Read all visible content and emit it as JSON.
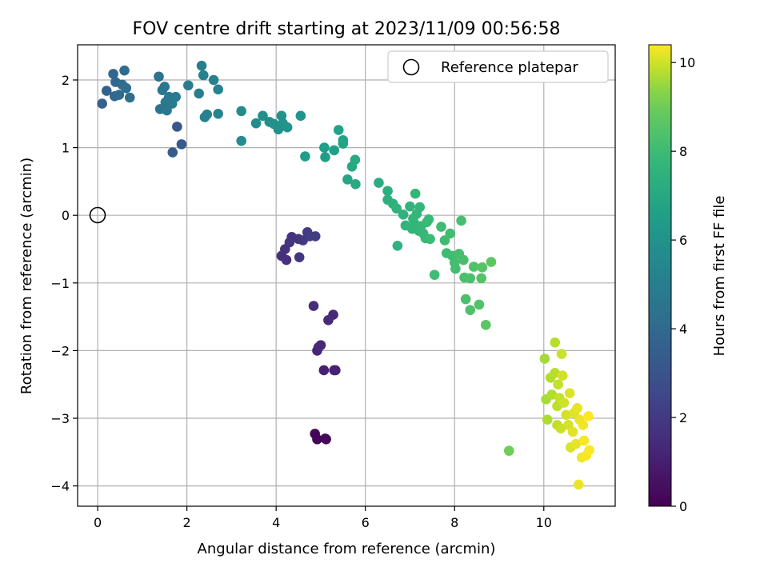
{
  "chart_data": {
    "type": "scatter",
    "title": "FOV centre drift starting at 2023/11/09 00:56:58",
    "xlabel": "Angular distance from reference (arcmin)",
    "ylabel": "Rotation from reference (arcmin)",
    "xlim": [
      -0.45,
      11.6
    ],
    "ylim": [
      -4.3,
      2.52
    ],
    "xticks": [
      0,
      2,
      4,
      6,
      8,
      10
    ],
    "yticks": [
      -4,
      -3,
      -2,
      -1,
      0,
      1,
      2
    ],
    "grid": true,
    "legend": {
      "position": "top-right",
      "entries": [
        "Reference platepar"
      ]
    },
    "reference_point": {
      "x": 0,
      "y": 0
    },
    "colorbar": {
      "label": "Hours from first FF file",
      "colormap": "viridis",
      "min": 0,
      "max": 10.4,
      "ticks": [
        0,
        2,
        4,
        6,
        8,
        10
      ]
    },
    "series": [
      {
        "points": [
          {
            "x": 4.87,
            "y": -3.23,
            "c": 0.1
          },
          {
            "x": 4.92,
            "y": -3.31,
            "c": 0.15
          },
          {
            "x": 5.1,
            "y": -3.3,
            "c": 0.2
          },
          {
            "x": 5.12,
            "y": -3.31,
            "c": 0.25
          },
          {
            "x": 5.3,
            "y": -2.29,
            "c": 1.0
          },
          {
            "x": 5.07,
            "y": -2.29,
            "c": 1.05
          },
          {
            "x": 5.33,
            "y": -2.29,
            "c": 1.1
          },
          {
            "x": 4.92,
            "y": -2.0,
            "c": 1.2
          },
          {
            "x": 4.95,
            "y": -1.95,
            "c": 1.25
          },
          {
            "x": 5.0,
            "y": -1.92,
            "c": 1.3
          },
          {
            "x": 5.28,
            "y": -1.47,
            "c": 1.35
          },
          {
            "x": 5.17,
            "y": -1.55,
            "c": 1.4
          },
          {
            "x": 4.84,
            "y": -1.34,
            "c": 1.45
          },
          {
            "x": 4.12,
            "y": -0.6,
            "c": 1.6
          },
          {
            "x": 4.23,
            "y": -0.66,
            "c": 1.65
          },
          {
            "x": 4.2,
            "y": -0.5,
            "c": 1.7
          },
          {
            "x": 4.3,
            "y": -0.4,
            "c": 1.75
          },
          {
            "x": 4.35,
            "y": -0.32,
            "c": 1.8
          },
          {
            "x": 4.5,
            "y": -0.35,
            "c": 1.85
          },
          {
            "x": 4.52,
            "y": -0.62,
            "c": 1.9
          },
          {
            "x": 4.6,
            "y": -0.37,
            "c": 1.95
          },
          {
            "x": 4.7,
            "y": -0.25,
            "c": 2.0
          },
          {
            "x": 4.75,
            "y": -0.31,
            "c": 2.05
          },
          {
            "x": 4.88,
            "y": -0.31,
            "c": 2.1
          },
          {
            "x": 1.78,
            "y": 1.31,
            "c": 3.1
          },
          {
            "x": 1.88,
            "y": 1.05,
            "c": 3.3
          },
          {
            "x": 1.68,
            "y": 0.93,
            "c": 3.4
          },
          {
            "x": 0.1,
            "y": 1.65,
            "c": 3.6
          },
          {
            "x": 0.2,
            "y": 1.84,
            "c": 3.7
          },
          {
            "x": 0.35,
            "y": 2.09,
            "c": 3.8
          },
          {
            "x": 0.4,
            "y": 1.97,
            "c": 3.9
          },
          {
            "x": 0.38,
            "y": 1.76,
            "c": 3.95
          },
          {
            "x": 0.48,
            "y": 1.78,
            "c": 4.0
          },
          {
            "x": 0.55,
            "y": 1.93,
            "c": 4.1
          },
          {
            "x": 0.6,
            "y": 2.14,
            "c": 4.15
          },
          {
            "x": 0.64,
            "y": 1.88,
            "c": 4.2
          },
          {
            "x": 0.72,
            "y": 1.74,
            "c": 4.25
          },
          {
            "x": 1.37,
            "y": 2.05,
            "c": 4.4
          },
          {
            "x": 1.4,
            "y": 1.57,
            "c": 4.5
          },
          {
            "x": 1.45,
            "y": 1.85,
            "c": 4.55
          },
          {
            "x": 1.5,
            "y": 1.9,
            "c": 4.6
          },
          {
            "x": 1.52,
            "y": 1.67,
            "c": 4.65
          },
          {
            "x": 1.55,
            "y": 1.55,
            "c": 4.7
          },
          {
            "x": 1.6,
            "y": 1.75,
            "c": 4.75
          },
          {
            "x": 1.67,
            "y": 1.65,
            "c": 4.8
          },
          {
            "x": 1.75,
            "y": 1.75,
            "c": 4.85
          },
          {
            "x": 2.03,
            "y": 1.92,
            "c": 4.9
          },
          {
            "x": 2.27,
            "y": 1.8,
            "c": 5.0
          },
          {
            "x": 2.33,
            "y": 2.21,
            "c": 5.05
          },
          {
            "x": 2.37,
            "y": 2.07,
            "c": 5.1
          },
          {
            "x": 2.4,
            "y": 1.45,
            "c": 5.15
          },
          {
            "x": 2.45,
            "y": 1.49,
            "c": 5.2
          },
          {
            "x": 2.6,
            "y": 2.0,
            "c": 5.25
          },
          {
            "x": 2.7,
            "y": 1.86,
            "c": 5.3
          },
          {
            "x": 2.7,
            "y": 1.5,
            "c": 5.35
          },
          {
            "x": 3.22,
            "y": 1.54,
            "c": 5.6
          },
          {
            "x": 3.22,
            "y": 1.1,
            "c": 5.65
          },
          {
            "x": 3.55,
            "y": 1.36,
            "c": 5.7
          },
          {
            "x": 3.7,
            "y": 1.47,
            "c": 5.75
          },
          {
            "x": 3.85,
            "y": 1.38,
            "c": 5.8
          },
          {
            "x": 3.95,
            "y": 1.35,
            "c": 5.85
          },
          {
            "x": 4.05,
            "y": 1.27,
            "c": 5.9
          },
          {
            "x": 4.12,
            "y": 1.47,
            "c": 5.95
          },
          {
            "x": 4.15,
            "y": 1.36,
            "c": 6.0
          },
          {
            "x": 4.25,
            "y": 1.3,
            "c": 6.05
          },
          {
            "x": 4.55,
            "y": 1.47,
            "c": 6.1
          },
          {
            "x": 4.65,
            "y": 0.87,
            "c": 6.4
          },
          {
            "x": 5.08,
            "y": 1.0,
            "c": 6.5
          },
          {
            "x": 5.1,
            "y": 0.86,
            "c": 6.55
          },
          {
            "x": 5.3,
            "y": 0.96,
            "c": 6.6
          },
          {
            "x": 5.4,
            "y": 1.26,
            "c": 6.7
          },
          {
            "x": 5.5,
            "y": 1.11,
            "c": 6.75
          },
          {
            "x": 5.5,
            "y": 1.06,
            "c": 6.8
          },
          {
            "x": 5.6,
            "y": 0.53,
            "c": 6.9
          },
          {
            "x": 5.7,
            "y": 0.72,
            "c": 7.0
          },
          {
            "x": 5.77,
            "y": 0.82,
            "c": 7.05
          },
          {
            "x": 5.78,
            "y": 0.46,
            "c": 7.1
          },
          {
            "x": 6.3,
            "y": 0.48,
            "c": 7.3
          },
          {
            "x": 6.5,
            "y": 0.36,
            "c": 7.35
          },
          {
            "x": 6.5,
            "y": 0.23,
            "c": 7.4
          },
          {
            "x": 6.62,
            "y": 0.17,
            "c": 7.45
          },
          {
            "x": 6.7,
            "y": 0.1,
            "c": 7.5
          },
          {
            "x": 6.72,
            "y": -0.45,
            "c": 7.5
          },
          {
            "x": 6.85,
            "y": 0.01,
            "c": 7.55
          },
          {
            "x": 6.9,
            "y": -0.15,
            "c": 7.6
          },
          {
            "x": 7.0,
            "y": 0.13,
            "c": 7.6
          },
          {
            "x": 7.05,
            "y": -0.2,
            "c": 7.65
          },
          {
            "x": 7.07,
            "y": -0.05,
            "c": 7.65
          },
          {
            "x": 7.1,
            "y": -0.12,
            "c": 7.7
          },
          {
            "x": 7.12,
            "y": 0.32,
            "c": 7.7
          },
          {
            "x": 7.15,
            "y": 0.02,
            "c": 7.75
          },
          {
            "x": 7.2,
            "y": -0.23,
            "c": 7.75
          },
          {
            "x": 7.22,
            "y": 0.12,
            "c": 7.8
          },
          {
            "x": 7.25,
            "y": -0.16,
            "c": 7.8
          },
          {
            "x": 7.3,
            "y": -0.27,
            "c": 7.85
          },
          {
            "x": 7.35,
            "y": -0.34,
            "c": 7.85
          },
          {
            "x": 7.38,
            "y": -0.1,
            "c": 7.9
          },
          {
            "x": 7.42,
            "y": -0.06,
            "c": 7.9
          },
          {
            "x": 7.45,
            "y": -0.35,
            "c": 7.95
          },
          {
            "x": 7.55,
            "y": -0.88,
            "c": 8.0
          },
          {
            "x": 7.7,
            "y": -0.17,
            "c": 8.0
          },
          {
            "x": 7.78,
            "y": -0.37,
            "c": 8.05
          },
          {
            "x": 7.82,
            "y": -0.56,
            "c": 8.05
          },
          {
            "x": 7.9,
            "y": -0.27,
            "c": 8.1
          },
          {
            "x": 7.95,
            "y": -0.6,
            "c": 8.1
          },
          {
            "x": 8.0,
            "y": -0.7,
            "c": 8.15
          },
          {
            "x": 8.02,
            "y": -0.79,
            "c": 8.15
          },
          {
            "x": 8.1,
            "y": -0.57,
            "c": 8.2
          },
          {
            "x": 8.15,
            "y": -0.08,
            "c": 8.2
          },
          {
            "x": 8.2,
            "y": -0.66,
            "c": 8.25
          },
          {
            "x": 8.22,
            "y": -0.92,
            "c": 8.25
          },
          {
            "x": 8.25,
            "y": -1.24,
            "c": 8.3
          },
          {
            "x": 8.35,
            "y": -0.93,
            "c": 8.3
          },
          {
            "x": 8.35,
            "y": -1.4,
            "c": 8.35
          },
          {
            "x": 8.43,
            "y": -0.76,
            "c": 8.4
          },
          {
            "x": 8.55,
            "y": -1.32,
            "c": 8.45
          },
          {
            "x": 8.6,
            "y": -0.93,
            "c": 8.5
          },
          {
            "x": 8.62,
            "y": -0.77,
            "c": 8.55
          },
          {
            "x": 8.7,
            "y": -1.62,
            "c": 8.65
          },
          {
            "x": 8.82,
            "y": -0.69,
            "c": 8.7
          },
          {
            "x": 9.22,
            "y": -3.48,
            "c": 9.1
          },
          {
            "x": 10.02,
            "y": -2.12,
            "c": 9.6
          },
          {
            "x": 10.05,
            "y": -2.72,
            "c": 9.65
          },
          {
            "x": 10.08,
            "y": -3.02,
            "c": 9.7
          },
          {
            "x": 10.15,
            "y": -2.4,
            "c": 9.75
          },
          {
            "x": 10.18,
            "y": -2.65,
            "c": 9.75
          },
          {
            "x": 10.25,
            "y": -1.88,
            "c": 9.8
          },
          {
            "x": 10.25,
            "y": -2.33,
            "c": 9.8
          },
          {
            "x": 10.3,
            "y": -3.1,
            "c": 9.85
          },
          {
            "x": 10.3,
            "y": -2.82,
            "c": 9.85
          },
          {
            "x": 10.32,
            "y": -2.5,
            "c": 9.9
          },
          {
            "x": 10.35,
            "y": -2.7,
            "c": 9.9
          },
          {
            "x": 10.38,
            "y": -3.15,
            "c": 9.95
          },
          {
            "x": 10.4,
            "y": -2.05,
            "c": 9.95
          },
          {
            "x": 10.42,
            "y": -2.37,
            "c": 10.0
          },
          {
            "x": 10.45,
            "y": -2.77,
            "c": 10.0
          },
          {
            "x": 10.5,
            "y": -2.95,
            "c": 10.05
          },
          {
            "x": 10.55,
            "y": -3.1,
            "c": 10.05
          },
          {
            "x": 10.58,
            "y": -2.63,
            "c": 10.1
          },
          {
            "x": 10.6,
            "y": -3.43,
            "c": 10.1
          },
          {
            "x": 10.65,
            "y": -3.2,
            "c": 10.15
          },
          {
            "x": 10.68,
            "y": -2.92,
            "c": 10.15
          },
          {
            "x": 10.72,
            "y": -3.38,
            "c": 10.2
          },
          {
            "x": 10.75,
            "y": -2.85,
            "c": 10.2
          },
          {
            "x": 10.78,
            "y": -3.98,
            "c": 10.25
          },
          {
            "x": 10.8,
            "y": -3.02,
            "c": 10.25
          },
          {
            "x": 10.85,
            "y": -3.58,
            "c": 10.3
          },
          {
            "x": 10.88,
            "y": -3.1,
            "c": 10.3
          },
          {
            "x": 10.9,
            "y": -3.33,
            "c": 10.35
          },
          {
            "x": 10.95,
            "y": -3.55,
            "c": 10.35
          },
          {
            "x": 11.0,
            "y": -2.97,
            "c": 10.4
          },
          {
            "x": 11.02,
            "y": -3.47,
            "c": 10.4
          }
        ]
      }
    ]
  }
}
